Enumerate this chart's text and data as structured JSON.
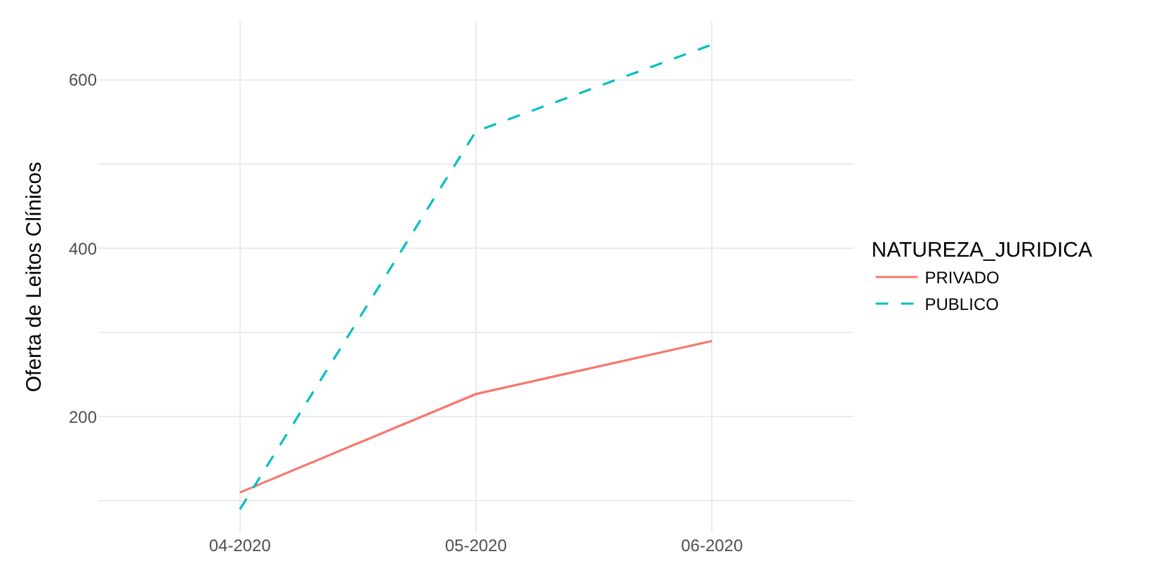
{
  "chart_data": {
    "type": "line",
    "ylabel": "Oferta de Leitos Clínicos",
    "legend_title": "NATUREZA_JURIDICA",
    "categories": [
      "04-2020",
      "05-2020",
      "06-2020"
    ],
    "series": [
      {
        "name": "PRIVADO",
        "color": "#f8766d",
        "line_style": "solid",
        "values": [
          110,
          227,
          290
        ]
      },
      {
        "name": "PUBLICO",
        "color": "#00bfc4",
        "line_style": "dashed",
        "values": [
          90,
          539,
          642
        ]
      }
    ],
    "ylim": [
      62,
      670
    ],
    "yticks": [
      {
        "value": 100,
        "label": null
      },
      200,
      {
        "value": 300,
        "label": null
      },
      400,
      {
        "value": 500,
        "label": null
      },
      600
    ],
    "grid": true,
    "legend": "right",
    "marker": "none"
  }
}
